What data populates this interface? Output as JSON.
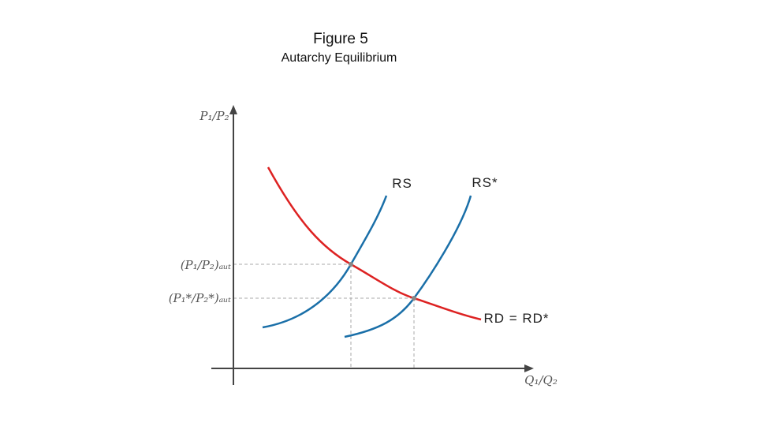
{
  "header": {
    "title": "Figure 5",
    "subtitle": "Autarchy Equilibrium"
  },
  "axes": {
    "y_label": "P₁/P₂",
    "x_label": "Q₁/Q₂"
  },
  "levels": [
    "(P₁/P₂)ₐᵤₜ",
    "(P₁*/P₂*)ₐᵤₜ"
  ],
  "curves": [
    "RS",
    "RS*",
    "RD = RD*"
  ]
}
